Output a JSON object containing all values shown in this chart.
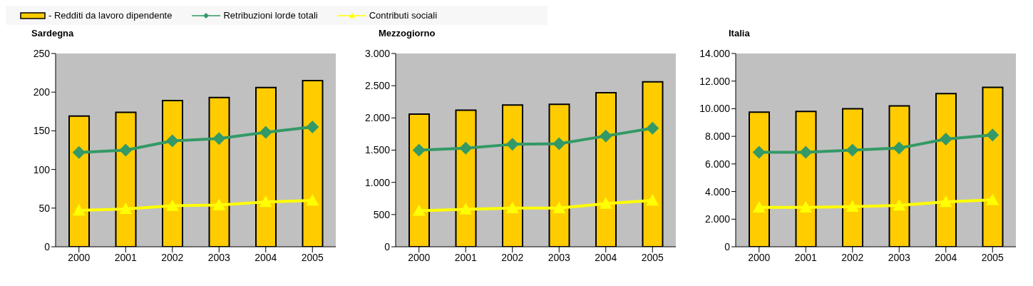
{
  "chart_data": [
    {
      "type": "bar",
      "title": "Sardegna",
      "categories": [
        "2000",
        "2001",
        "2002",
        "2003",
        "2004",
        "2005"
      ],
      "legend": "top",
      "series": [
        {
          "name": "- Redditi da lavoro dipendente",
          "color": "#ffcc00",
          "values": [
            169,
            174,
            189,
            193,
            206,
            215
          ]
        },
        {
          "name": "Retribuzioni lorde totali",
          "type": "line",
          "color": "#339966",
          "marker": "diamond",
          "values": [
            122,
            125,
            137,
            140,
            148,
            155
          ]
        },
        {
          "name": "Contributi sociali",
          "type": "line",
          "color": "#ffff00",
          "marker": "triangle",
          "values": [
            47,
            49,
            53,
            54,
            58,
            60
          ]
        }
      ],
      "ylim": [
        0,
        250
      ],
      "yticks": [
        0,
        50,
        100,
        150,
        200,
        250
      ]
    },
    {
      "type": "bar",
      "title": "Mezzogiorno",
      "categories": [
        "2000",
        "2001",
        "2002",
        "2003",
        "2004",
        "2005"
      ],
      "series": [
        {
          "color": "#ffcc00",
          "values": [
            2060,
            2120,
            2200,
            2210,
            2390,
            2560
          ]
        },
        {
          "type": "line",
          "color": "#339966",
          "marker": "diamond",
          "values": [
            1500,
            1530,
            1590,
            1600,
            1720,
            1840
          ]
        },
        {
          "type": "line",
          "color": "#ffff00",
          "marker": "triangle",
          "values": [
            560,
            580,
            600,
            600,
            670,
            720
          ]
        }
      ],
      "ylim": [
        0,
        3000
      ],
      "yticks": [
        0,
        500,
        {
          "value": 1000,
          "label": "1.000"
        },
        {
          "value": 1500,
          "label": "1.500"
        },
        {
          "value": 2000,
          "label": "2.000"
        },
        {
          "value": 2500,
          "label": "2.500"
        },
        {
          "value": 3000,
          "label": "3.000"
        }
      ]
    },
    {
      "type": "bar",
      "title": "Italia",
      "categories": [
        "2000",
        "2001",
        "2002",
        "2003",
        "2004",
        "2005"
      ],
      "series": [
        {
          "color": "#ffcc00",
          "values": [
            9750,
            9800,
            10000,
            10200,
            11100,
            11550
          ]
        },
        {
          "type": "line",
          "color": "#339966",
          "marker": "diamond",
          "values": [
            6850,
            6850,
            7000,
            7150,
            7800,
            8100
          ]
        },
        {
          "type": "line",
          "color": "#ffff00",
          "marker": "triangle",
          "values": [
            2850,
            2850,
            2900,
            3000,
            3250,
            3400
          ]
        }
      ],
      "ylim": [
        0,
        14000
      ],
      "yticks": [
        0,
        {
          "value": 2000,
          "label": "2.000"
        },
        {
          "value": 4000,
          "label": "4.000"
        },
        {
          "value": 6000,
          "label": "6.000"
        },
        {
          "value": 8000,
          "label": "8.000"
        },
        {
          "value": 10000,
          "label": "10.000"
        },
        {
          "value": 12000,
          "label": "12.000"
        },
        {
          "value": 14000,
          "label": "14.000"
        }
      ]
    }
  ]
}
